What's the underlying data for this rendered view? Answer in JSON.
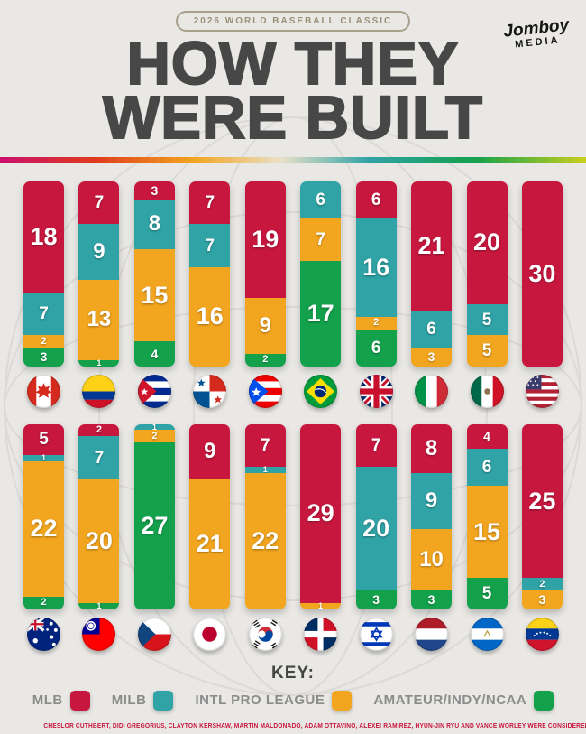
{
  "header": {
    "badge": "2026 WORLD BASEBALL CLASSIC",
    "logo": {
      "line1": "Jomboy",
      "line2": "MEDIA"
    },
    "title_line1": "HOW THEY",
    "title_line2": "WERE BUILT"
  },
  "key": {
    "title": "KEY:",
    "items": [
      {
        "label": "MLB",
        "category": "MLB",
        "color": "#c8173f"
      },
      {
        "label": "MILB",
        "category": "MILB",
        "color": "#2fa3a6"
      },
      {
        "label": "INTL PRO LEAGUE",
        "category": "INTL",
        "color": "#f2a51e"
      },
      {
        "label": "AMATEUR/INDY/NCAA",
        "category": "AMATEUR",
        "color": "#13a14c"
      }
    ]
  },
  "footnote": "CHESLOR CUTHBERT, DIDI GREGORIUS, CLAYTON KERSHAW, MARTIN MALDONADO, ADAM OTTAVINO, ALEXEI RAMIREZ, HYUN-JIN RYU AND VANCE WORLEY WERE CONSIDERED MLB DESPITE BEING RETIRED",
  "chart_data": {
    "type": "bar",
    "stacked": true,
    "title": "HOW THEY WERE BUILT",
    "subtitle": "2026 WORLD BASEBALL CLASSIC",
    "total_per_team": 30,
    "legend": [
      "MLB",
      "MILB",
      "INTL PRO LEAGUE",
      "AMATEUR/INDY/NCAA"
    ],
    "colors": {
      "MLB": "#c8173f",
      "MILB": "#2fa3a6",
      "INTL": "#f2a51e",
      "AMATEUR": "#13a14c"
    },
    "rows": [
      {
        "teams": [
          {
            "name": "Canada",
            "code": "ca",
            "icon": "flag-canada",
            "segments": [
              {
                "cat": "MLB",
                "v": 18
              },
              {
                "cat": "MILB",
                "v": 7
              },
              {
                "cat": "INTL",
                "v": 2
              },
              {
                "cat": "AMATEUR",
                "v": 3
              }
            ]
          },
          {
            "name": "Colombia",
            "code": "co",
            "icon": "flag-colombia",
            "segments": [
              {
                "cat": "MLB",
                "v": 7
              },
              {
                "cat": "MILB",
                "v": 9
              },
              {
                "cat": "INTL",
                "v": 13
              },
              {
                "cat": "AMATEUR",
                "v": 1
              }
            ]
          },
          {
            "name": "Cuba",
            "code": "cu",
            "icon": "flag-cuba",
            "segments": [
              {
                "cat": "MLB",
                "v": 3
              },
              {
                "cat": "MILB",
                "v": 8
              },
              {
                "cat": "INTL",
                "v": 15
              },
              {
                "cat": "AMATEUR",
                "v": 4
              }
            ]
          },
          {
            "name": "Panama",
            "code": "pa",
            "icon": "flag-panama",
            "segments": [
              {
                "cat": "MLB",
                "v": 7
              },
              {
                "cat": "MILB",
                "v": 7
              },
              {
                "cat": "INTL",
                "v": 16
              }
            ]
          },
          {
            "name": "Puerto Rico",
            "code": "pr",
            "icon": "flag-puerto-rico",
            "segments": [
              {
                "cat": "MLB",
                "v": 19
              },
              {
                "cat": "INTL",
                "v": 9
              },
              {
                "cat": "AMATEUR",
                "v": 2
              }
            ]
          },
          {
            "name": "Brazil",
            "code": "br",
            "icon": "flag-brazil",
            "segments": [
              {
                "cat": "MILB",
                "v": 6
              },
              {
                "cat": "INTL",
                "v": 7
              },
              {
                "cat": "AMATEUR",
                "v": 17
              }
            ]
          },
          {
            "name": "Great Britain",
            "code": "gb",
            "icon": "flag-great-britain",
            "segments": [
              {
                "cat": "MLB",
                "v": 6
              },
              {
                "cat": "MILB",
                "v": 16
              },
              {
                "cat": "INTL",
                "v": 2
              },
              {
                "cat": "AMATEUR",
                "v": 6
              }
            ]
          },
          {
            "name": "Italy",
            "code": "it",
            "icon": "flag-italy",
            "segments": [
              {
                "cat": "MLB",
                "v": 21
              },
              {
                "cat": "MILB",
                "v": 6
              },
              {
                "cat": "INTL",
                "v": 3
              }
            ]
          },
          {
            "name": "Mexico",
            "code": "mx",
            "icon": "flag-mexico",
            "segments": [
              {
                "cat": "MLB",
                "v": 20
              },
              {
                "cat": "MILB",
                "v": 5
              },
              {
                "cat": "INTL",
                "v": 5
              }
            ]
          },
          {
            "name": "United States",
            "code": "us",
            "icon": "flag-usa",
            "segments": [
              {
                "cat": "MLB",
                "v": 30
              }
            ]
          }
        ]
      },
      {
        "teams": [
          {
            "name": "Australia",
            "code": "au",
            "icon": "flag-australia",
            "segments": [
              {
                "cat": "MLB",
                "v": 5
              },
              {
                "cat": "MILB",
                "v": 1
              },
              {
                "cat": "INTL",
                "v": 22
              },
              {
                "cat": "AMATEUR",
                "v": 2
              }
            ]
          },
          {
            "name": "Chinese Taipei",
            "code": "tw",
            "icon": "flag-chinese-taipei",
            "segments": [
              {
                "cat": "MLB",
                "v": 2
              },
              {
                "cat": "MILB",
                "v": 7
              },
              {
                "cat": "INTL",
                "v": 20
              },
              {
                "cat": "AMATEUR",
                "v": 1
              }
            ]
          },
          {
            "name": "Czechia",
            "code": "cz",
            "icon": "flag-czechia",
            "segments": [
              {
                "cat": "MILB",
                "v": 1
              },
              {
                "cat": "INTL",
                "v": 2
              },
              {
                "cat": "AMATEUR",
                "v": 27
              }
            ]
          },
          {
            "name": "Japan",
            "code": "jp",
            "icon": "flag-japan",
            "segments": [
              {
                "cat": "MLB",
                "v": 9
              },
              {
                "cat": "INTL",
                "v": 21
              }
            ]
          },
          {
            "name": "South Korea",
            "code": "kr",
            "icon": "flag-south-korea",
            "segments": [
              {
                "cat": "MLB",
                "v": 7
              },
              {
                "cat": "MILB",
                "v": 1
              },
              {
                "cat": "INTL",
                "v": 22
              }
            ]
          },
          {
            "name": "Dominican Republic",
            "code": "do",
            "icon": "flag-dominican-republic",
            "segments": [
              {
                "cat": "MLB",
                "v": 29
              },
              {
                "cat": "INTL",
                "v": 1
              }
            ]
          },
          {
            "name": "Israel",
            "code": "il",
            "icon": "flag-israel",
            "segments": [
              {
                "cat": "MLB",
                "v": 7
              },
              {
                "cat": "MILB",
                "v": 20
              },
              {
                "cat": "AMATEUR",
                "v": 3
              }
            ]
          },
          {
            "name": "Netherlands",
            "code": "nl",
            "icon": "flag-netherlands",
            "segments": [
              {
                "cat": "MLB",
                "v": 8
              },
              {
                "cat": "MILB",
                "v": 9
              },
              {
                "cat": "INTL",
                "v": 10
              },
              {
                "cat": "AMATEUR",
                "v": 3
              }
            ]
          },
          {
            "name": "Nicaragua",
            "code": "ni",
            "icon": "flag-nicaragua",
            "segments": [
              {
                "cat": "MLB",
                "v": 4
              },
              {
                "cat": "MILB",
                "v": 6
              },
              {
                "cat": "INTL",
                "v": 15
              },
              {
                "cat": "AMATEUR",
                "v": 5
              }
            ]
          },
          {
            "name": "Venezuela",
            "code": "ve",
            "icon": "flag-venezuela",
            "segments": [
              {
                "cat": "MLB",
                "v": 25
              },
              {
                "cat": "MILB",
                "v": 2
              },
              {
                "cat": "INTL",
                "v": 3
              }
            ]
          }
        ]
      }
    ]
  }
}
